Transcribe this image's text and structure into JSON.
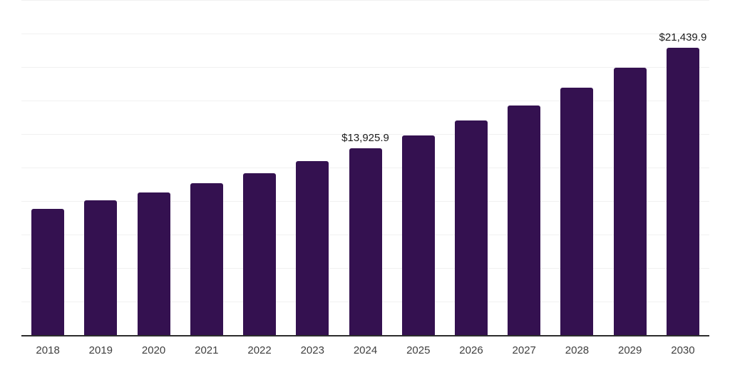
{
  "chart_data": {
    "type": "bar",
    "title": "",
    "xlabel": "",
    "ylabel": "",
    "categories": [
      "2018",
      "2019",
      "2020",
      "2021",
      "2022",
      "2023",
      "2024",
      "2025",
      "2026",
      "2027",
      "2028",
      "2029",
      "2030"
    ],
    "values": [
      9415,
      10050,
      10640,
      11330,
      12075,
      12980,
      13925.9,
      14895,
      16010,
      17130,
      18460,
      19945,
      21439.9
    ],
    "data_labels": {
      "2024": "$13,925.9",
      "2030": "$21,439.9"
    },
    "ylim": [
      0,
      25000
    ],
    "grid_step": 2500,
    "grid": "horizontal",
    "legend": "none",
    "bar_color": "#341150",
    "axis_line_color": "#2d2d2d",
    "gridline_color": "#f1f1f1",
    "tick_label_color": "#3f3f3f",
    "data_label_color": "#1b1b1b"
  }
}
